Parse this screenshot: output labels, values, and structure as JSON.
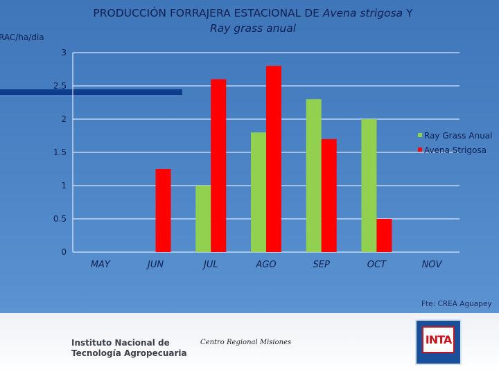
{
  "header": {
    "title_part1": "PRODUCCIÓN FORRAJERA ESTACIONAL DE ",
    "title_italic1": "Avena strigosa",
    "title_part2": " Y",
    "title_line2": "Ray grass anual",
    "unit_label": "RAC/ha/dia"
  },
  "chart_data": {
    "type": "bar",
    "categories": [
      "MAY",
      "JUN",
      "JUL",
      "AGO",
      "SEP",
      "OCT",
      "NOV"
    ],
    "series": [
      {
        "name": "Ray Grass Anual",
        "color": "#92d050",
        "values": [
          0,
          0,
          1.0,
          1.8,
          2.3,
          2.0,
          0
        ]
      },
      {
        "name": "Avena Strigosa",
        "color": "#ff0000",
        "values": [
          0,
          1.25,
          2.6,
          2.8,
          1.7,
          0.5,
          0
        ]
      }
    ],
    "ylim": [
      0,
      3
    ],
    "yticks": [
      "0",
      "0.5",
      "1",
      "1.5",
      "2",
      "2.5",
      "3"
    ],
    "ylabel": "RAC/ha/dia",
    "grid": true,
    "legend": "right"
  },
  "footer": {
    "source": "Fte: CREA Aguapey",
    "institute_line1": "Instituto Nacional de",
    "institute_line2": "Tecnología Agropecuaria",
    "region": "Centro Regional Misiones",
    "logo_text": "INTA"
  },
  "colors": {
    "background": "#4c84c6",
    "ray_grass": "#92d050",
    "avena": "#ff0000",
    "grid": "#ffffff",
    "text": "#0f1f4f"
  }
}
